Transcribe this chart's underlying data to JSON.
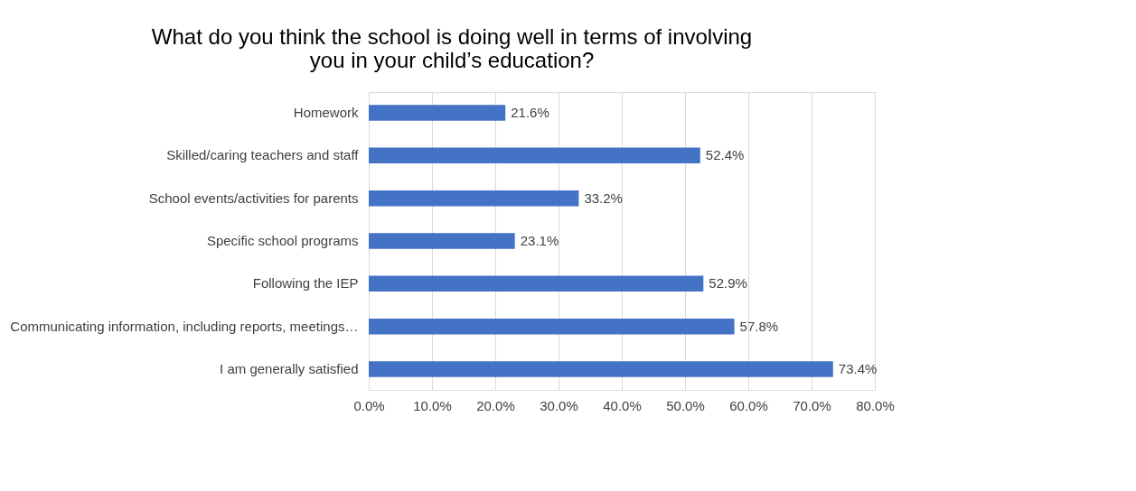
{
  "chart_data": {
    "type": "bar",
    "orientation": "horizontal",
    "title": "What do you think the school is doing well in terms of involving you in your child’s education?",
    "categories": [
      "Homework",
      "Skilled/caring teachers and staff",
      "School events/activities for parents",
      "Specific school programs",
      "Following the IEP",
      "Communicating information, including reports, meetings…",
      "I am generally satisfied"
    ],
    "values": [
      21.6,
      52.4,
      33.2,
      23.1,
      52.9,
      57.8,
      73.4
    ],
    "value_labels": [
      "21.6%",
      "52.4%",
      "33.2%",
      "23.1%",
      "52.9%",
      "57.8%",
      "73.4%"
    ],
    "color": "#4472c4",
    "xlim": [
      0,
      80
    ],
    "xticks": [
      {
        "value": 0,
        "label": "0.0%"
      },
      {
        "value": 10,
        "label": "10.0%"
      },
      {
        "value": 20,
        "label": "20.0%"
      },
      {
        "value": 30,
        "label": "30.0%"
      },
      {
        "value": 40,
        "label": "40.0%"
      },
      {
        "value": 50,
        "label": "50.0%"
      },
      {
        "value": 60,
        "label": "60.0%"
      },
      {
        "value": 70,
        "label": "70.0%"
      },
      {
        "value": 80,
        "label": "80.0%"
      }
    ],
    "grid": "x"
  }
}
